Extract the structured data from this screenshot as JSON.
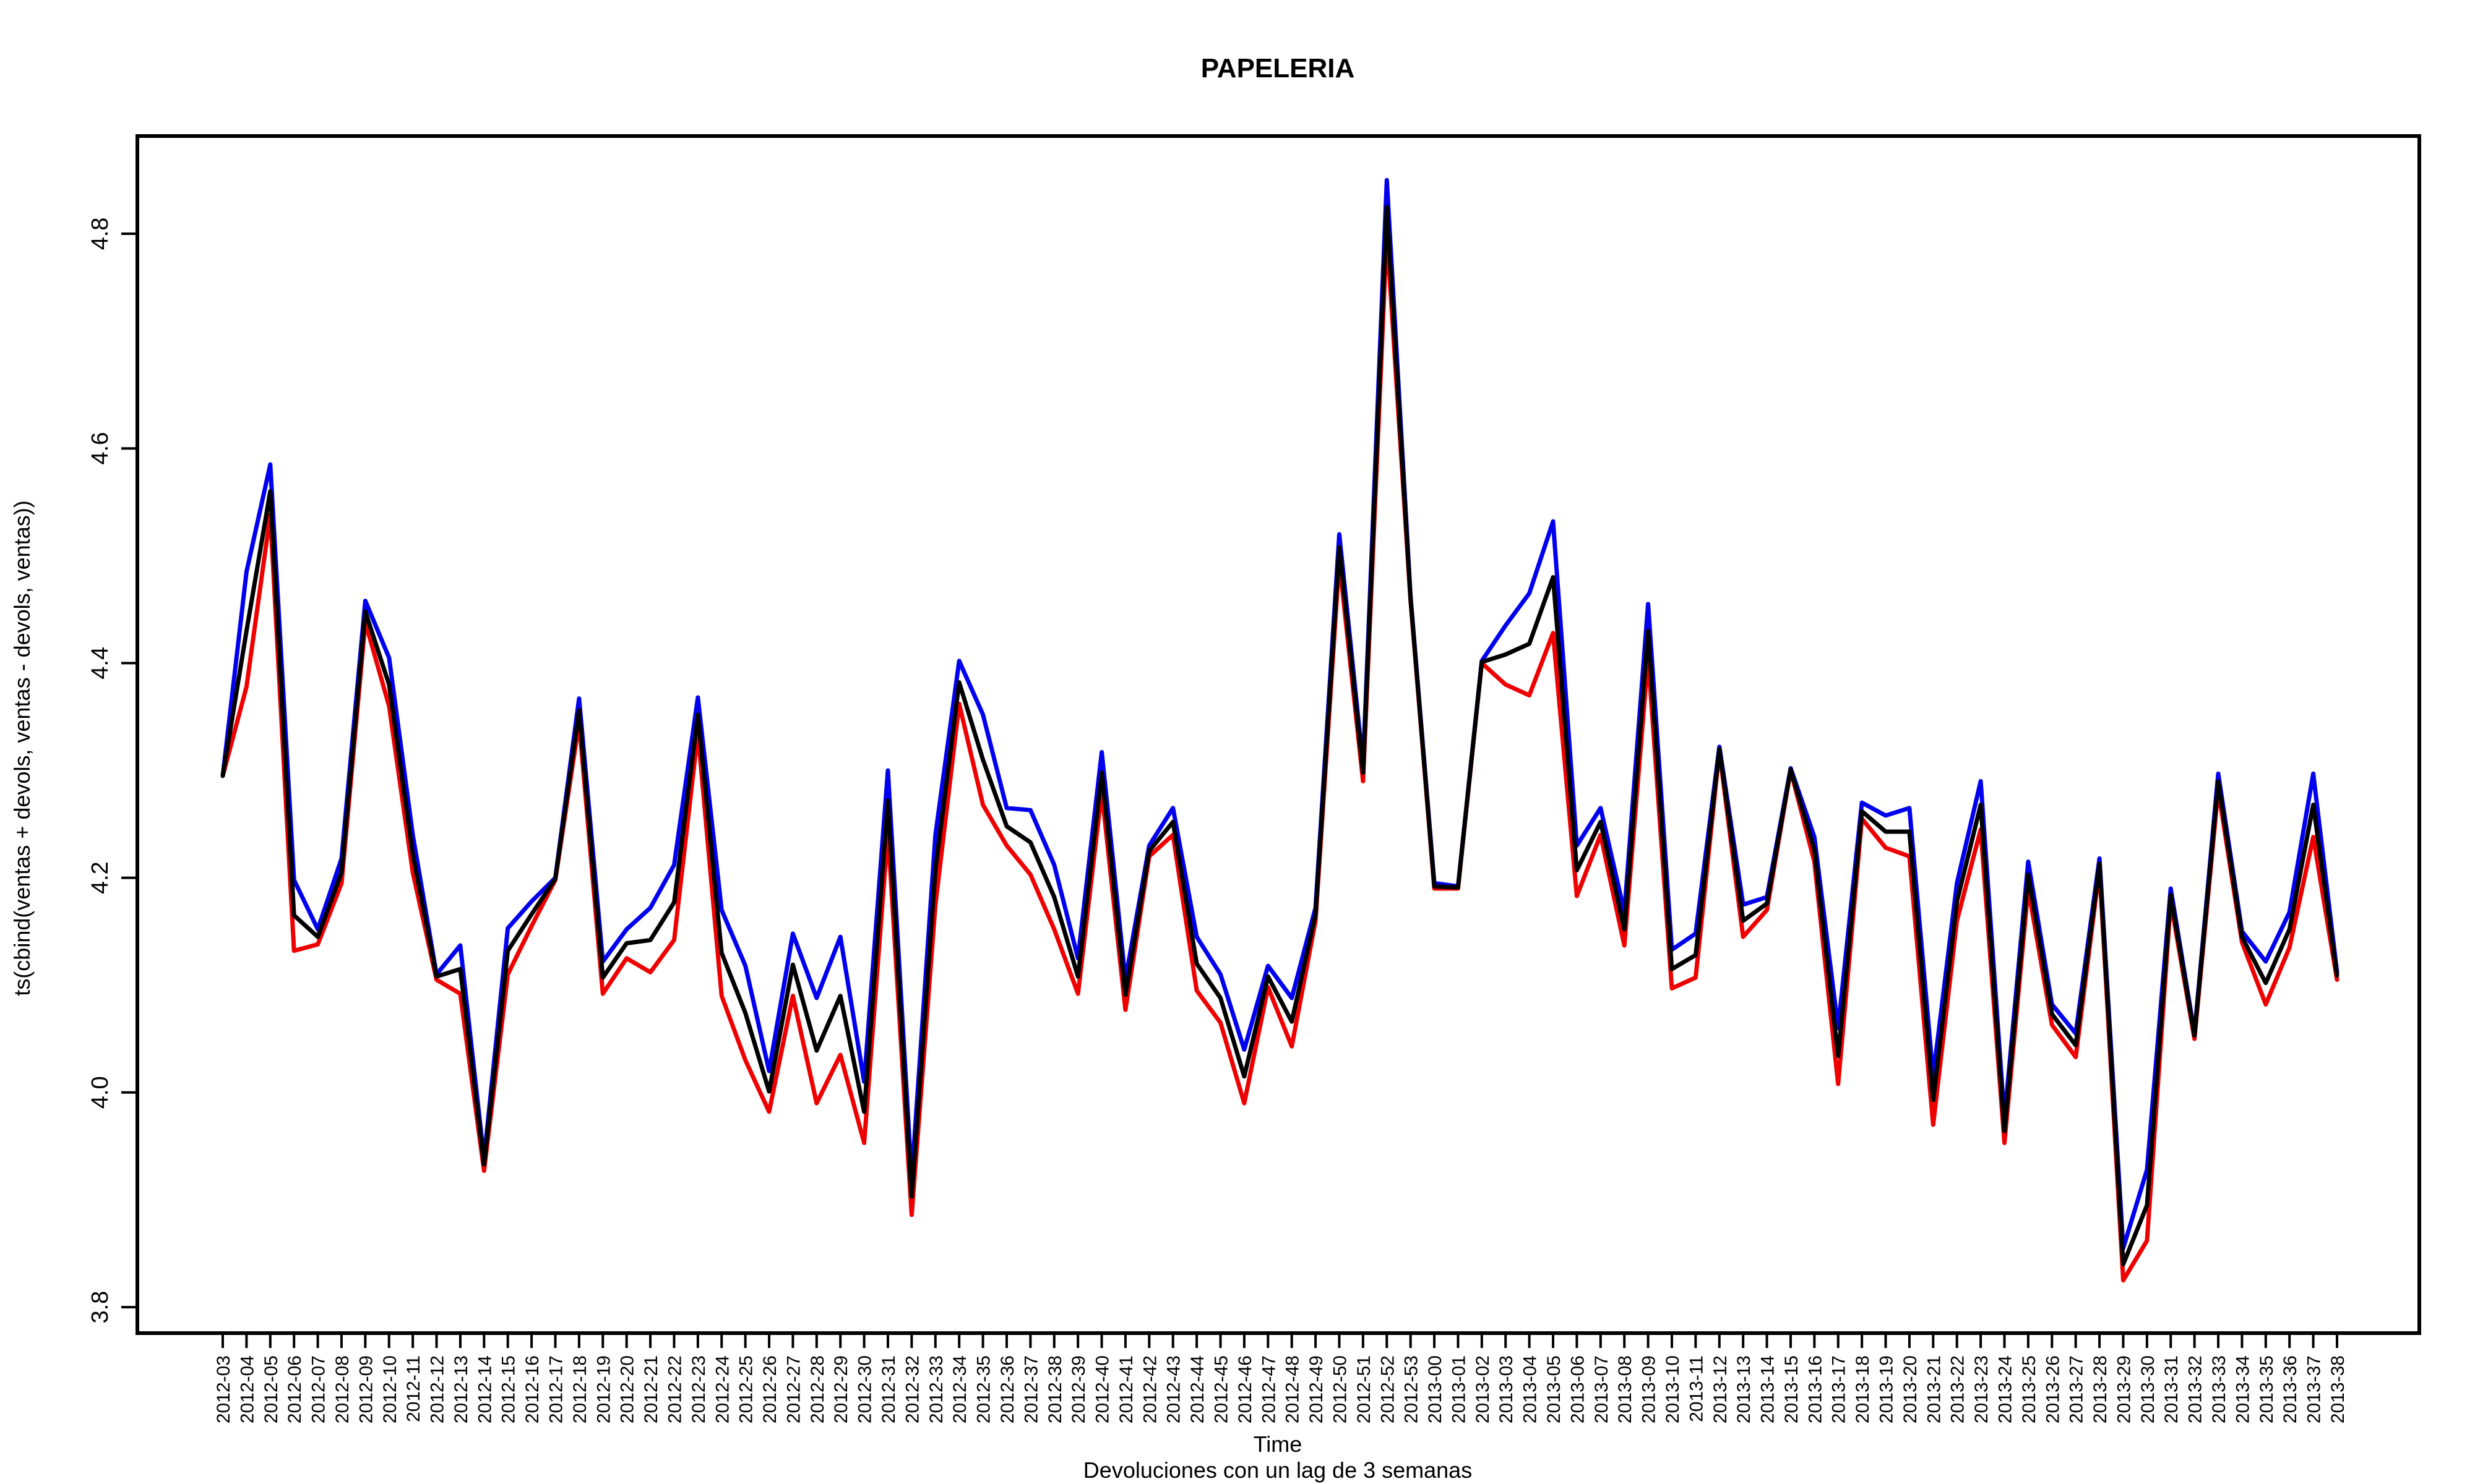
{
  "chart_data": {
    "type": "line",
    "title": "PAPELERIA",
    "xlabel": "Time",
    "sublabel": "Devoluciones con un lag de 3 semanas",
    "ylabel": "ts(cbind(ventas + devols, ventas - devols, ventas))",
    "ylim": [
      3.8,
      4.88
    ],
    "yticks": [
      "3.8",
      "4.0",
      "4.2",
      "4.4",
      "4.6",
      "4.8"
    ],
    "grid": false,
    "x": [
      "2012-03",
      "2012-04",
      "2012-05",
      "2012-06",
      "2012-07",
      "2012-08",
      "2012-09",
      "2012-10",
      "2012-11",
      "2012-12",
      "2012-13",
      "2012-14",
      "2012-15",
      "2012-16",
      "2012-17",
      "2012-18",
      "2012-19",
      "2012-20",
      "2012-21",
      "2012-22",
      "2012-23",
      "2012-24",
      "2012-25",
      "2012-26",
      "2012-27",
      "2012-28",
      "2012-29",
      "2012-30",
      "2012-31",
      "2012-32",
      "2012-33",
      "2012-34",
      "2012-35",
      "2012-36",
      "2012-37",
      "2012-38",
      "2012-39",
      "2012-40",
      "2012-41",
      "2012-42",
      "2012-43",
      "2012-44",
      "2012-45",
      "2012-46",
      "2012-47",
      "2012-48",
      "2012-49",
      "2012-50",
      "2012-51",
      "2012-52",
      "2012-53",
      "2013-00",
      "2013-01",
      "2013-02",
      "2013-03",
      "2013-04",
      "2013-05",
      "2013-06",
      "2013-07",
      "2013-08",
      "2013-09",
      "2013-10",
      "2013-11",
      "2013-12",
      "2013-13",
      "2013-14",
      "2013-15",
      "2013-16",
      "2013-17",
      "2013-18",
      "2013-19",
      "2013-20",
      "2013-21",
      "2013-22",
      "2013-23",
      "2013-24",
      "2013-25",
      "2013-26",
      "2013-27",
      "2013-28",
      "2013-29",
      "2013-30",
      "2013-31",
      "2013-32",
      "2013-33",
      "2013-34",
      "2013-35",
      "2013-36",
      "2013-37",
      "2013-38"
    ],
    "series": [
      {
        "color": "#0000ee",
        "values": [
          4.295,
          4.485,
          4.585,
          4.198,
          4.152,
          4.218,
          4.458,
          4.405,
          4.24,
          4.11,
          4.137,
          3.938,
          4.153,
          4.178,
          4.2,
          4.367,
          4.122,
          4.152,
          4.172,
          4.212,
          4.368,
          4.17,
          4.118,
          4.02,
          4.148,
          4.088,
          4.145,
          4.01,
          4.3,
          3.92,
          4.24,
          4.402,
          4.352,
          4.265,
          4.263,
          4.212,
          4.125,
          4.317,
          4.105,
          4.23,
          4.265,
          4.145,
          4.11,
          4.04,
          4.118,
          4.088,
          4.172,
          4.52,
          4.305,
          4.85,
          4.462,
          4.195,
          4.192,
          4.402,
          4.435,
          4.465,
          4.532,
          4.23,
          4.265,
          4.168,
          4.455,
          4.133,
          4.148,
          4.322,
          4.175,
          4.182,
          4.302,
          4.238,
          4.06,
          4.27,
          4.258,
          4.265,
          4.015,
          4.195,
          4.29,
          3.975,
          4.215,
          4.082,
          4.055,
          4.218,
          3.855,
          3.928,
          4.19,
          4.055,
          4.297,
          4.15,
          4.122,
          4.168,
          4.297,
          4.112
        ]
      },
      {
        "color": "#ee0000",
        "values": [
          4.295,
          4.378,
          4.538,
          4.132,
          4.138,
          4.195,
          4.438,
          4.36,
          4.205,
          4.105,
          4.092,
          3.927,
          4.11,
          4.155,
          4.198,
          4.345,
          4.092,
          4.125,
          4.112,
          4.142,
          4.335,
          4.09,
          4.03,
          3.982,
          4.09,
          3.99,
          4.035,
          3.953,
          4.243,
          3.886,
          4.175,
          4.362,
          4.268,
          4.23,
          4.203,
          4.152,
          4.092,
          4.28,
          4.077,
          4.22,
          4.24,
          4.095,
          4.065,
          3.99,
          4.098,
          4.043,
          4.16,
          4.495,
          4.29,
          4.8,
          4.458,
          4.19,
          4.19,
          4.4,
          4.38,
          4.37,
          4.428,
          4.183,
          4.24,
          4.137,
          4.405,
          4.097,
          4.107,
          4.318,
          4.145,
          4.17,
          4.3,
          4.215,
          4.008,
          4.255,
          4.228,
          4.22,
          3.97,
          4.16,
          4.245,
          3.953,
          4.19,
          4.063,
          4.033,
          4.208,
          3.825,
          3.862,
          4.178,
          4.05,
          4.282,
          4.14,
          4.082,
          4.135,
          4.238,
          4.105
        ]
      },
      {
        "color": "#000000",
        "values": [
          4.295,
          4.43,
          4.56,
          4.165,
          4.145,
          4.205,
          4.448,
          4.38,
          4.222,
          4.108,
          4.115,
          3.933,
          4.132,
          4.166,
          4.199,
          4.356,
          4.107,
          4.139,
          4.142,
          4.177,
          4.352,
          4.13,
          4.074,
          4.001,
          4.119,
          4.039,
          4.09,
          3.982,
          4.272,
          3.903,
          4.208,
          4.382,
          4.31,
          4.248,
          4.233,
          4.182,
          4.108,
          4.298,
          4.091,
          4.225,
          4.252,
          4.12,
          4.088,
          4.015,
          4.108,
          4.066,
          4.166,
          4.508,
          4.298,
          4.825,
          4.46,
          4.192,
          4.191,
          4.401,
          4.408,
          4.418,
          4.48,
          4.207,
          4.252,
          4.152,
          4.43,
          4.115,
          4.128,
          4.32,
          4.16,
          4.176,
          4.301,
          4.226,
          4.034,
          4.262,
          4.243,
          4.243,
          3.993,
          4.178,
          4.268,
          3.964,
          4.203,
          4.073,
          4.044,
          4.213,
          3.84,
          3.895,
          4.184,
          4.053,
          4.29,
          4.145,
          4.102,
          4.152,
          4.268,
          4.109
        ]
      }
    ]
  }
}
